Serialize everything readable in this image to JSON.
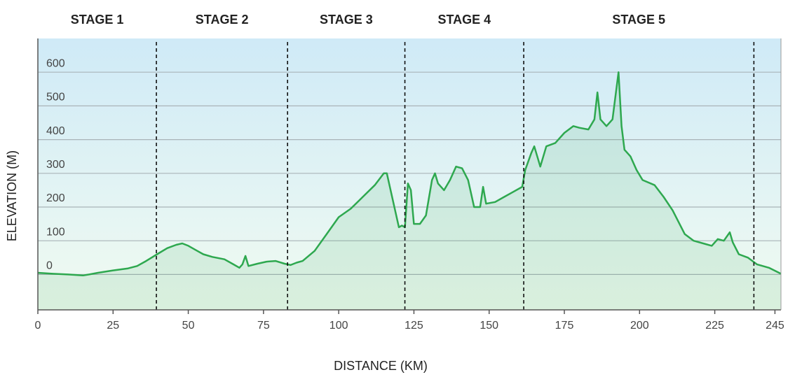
{
  "chart_data": {
    "type": "area",
    "xlabel": "DISTANCE (KM)",
    "ylabel": "ELEVATION (M)",
    "x": [
      0,
      5,
      10,
      15,
      17,
      20,
      25,
      30,
      33,
      36,
      40,
      43,
      46,
      48,
      50,
      53,
      55,
      58,
      62,
      65,
      67,
      68,
      69,
      70,
      73,
      76,
      79,
      82,
      84,
      86,
      88,
      92,
      96,
      100,
      104,
      108,
      112,
      115,
      116,
      117,
      119,
      120,
      121,
      122,
      123,
      124,
      125,
      127,
      129,
      131,
      132,
      133,
      135,
      137,
      139,
      141,
      143,
      145,
      147,
      148,
      149,
      152,
      155,
      158,
      161,
      162,
      164,
      165,
      166,
      167,
      169,
      172,
      175,
      178,
      180,
      183,
      185,
      186,
      187,
      189,
      191,
      192,
      193,
      194,
      195,
      197,
      199,
      201,
      205,
      208,
      211,
      215,
      218,
      222,
      224,
      226,
      228,
      230,
      231,
      233,
      236,
      239,
      243,
      247
    ],
    "series": [
      {
        "name": "Elevation",
        "color": "#2ea84f",
        "values": [
          5,
          2,
          0,
          -3,
          0,
          5,
          12,
          18,
          25,
          40,
          62,
          78,
          88,
          92,
          85,
          70,
          60,
          52,
          45,
          30,
          20,
          30,
          55,
          25,
          32,
          38,
          40,
          32,
          28,
          35,
          40,
          70,
          120,
          170,
          195,
          230,
          265,
          300,
          300,
          260,
          180,
          140,
          145,
          140,
          270,
          250,
          150,
          150,
          175,
          280,
          300,
          270,
          250,
          280,
          320,
          315,
          280,
          200,
          200,
          260,
          210,
          215,
          230,
          245,
          260,
          310,
          360,
          380,
          350,
          320,
          380,
          390,
          420,
          440,
          435,
          430,
          460,
          540,
          460,
          440,
          460,
          530,
          600,
          440,
          370,
          350,
          310,
          280,
          265,
          230,
          190,
          120,
          100,
          90,
          85,
          105,
          100,
          125,
          95,
          60,
          50,
          30,
          20,
          2
        ]
      }
    ],
    "xlim": [
      0,
      247
    ],
    "ylim": [
      -105,
      700
    ],
    "xticks": [
      0,
      25,
      50,
      75,
      100,
      125,
      150,
      175,
      200,
      225,
      245
    ],
    "yticks": [
      0,
      100,
      200,
      300,
      400,
      500,
      600
    ],
    "grid": true,
    "stages": [
      "STAGE 1",
      "STAGE 2",
      "STAGE 3",
      "STAGE 4",
      "STAGE 5"
    ],
    "stage_boundaries": [
      39.4,
      83,
      122,
      161.5,
      238
    ]
  }
}
